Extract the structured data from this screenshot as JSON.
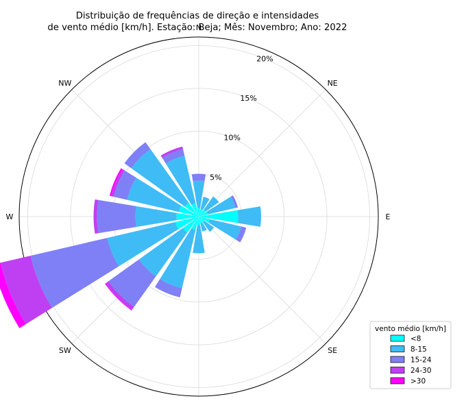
{
  "chart_data": {
    "type": "windrose",
    "title_line1": "Distribuição de frequências de direção e intensidades",
    "title_line2": "de vento médio [km/h]. Estação: Beja; Mês: Novembro; Ano: 2022",
    "directions": [
      "N",
      "NNE",
      "NE",
      "ENE",
      "E",
      "ESE",
      "SE",
      "SSE",
      "S",
      "SSW",
      "SW",
      "WSW",
      "W",
      "WNW",
      "NW",
      "NNW"
    ],
    "direction_angles_deg": [
      0,
      22.5,
      45,
      67.5,
      90,
      112.5,
      135,
      157.5,
      180,
      202.5,
      225,
      247.5,
      270,
      292.5,
      315,
      337.5
    ],
    "compass_labels": [
      "N",
      "NE",
      "E",
      "SE",
      "S",
      "SW",
      "W",
      "NW"
    ],
    "radial_ticks": [
      5,
      10,
      15,
      20
    ],
    "radial_tick_labels": [
      "5%",
      "10%",
      "15%",
      "20%"
    ],
    "rmax": 21,
    "legend": {
      "title": "vento médio [km/h]",
      "position": "lower-right",
      "entries": [
        "<8",
        "8-15",
        "15-24",
        "24-30",
        ">30"
      ]
    },
    "colors": [
      "#00ffff",
      "#3fbcf5",
      "#7f80f6",
      "#bf40f2",
      "#ff00ff"
    ],
    "series": [
      {
        "name": "<8",
        "values": [
          1.0,
          0.9,
          1.0,
          1.1,
          4.6,
          1.3,
          0.8,
          0.8,
          1.0,
          1.6,
          2.3,
          2.8,
          2.6,
          2.4,
          2.0,
          1.6
        ]
      },
      {
        "name": "8-15",
        "values": [
          3.2,
          1.5,
          1.9,
          3.3,
          2.7,
          3.8,
          1.4,
          1.0,
          3.3,
          7.0,
          6.3,
          8.2,
          4.8,
          6.2,
          7.7,
          5.7
        ]
      },
      {
        "name": "15-24",
        "values": [
          0.8,
          0.0,
          0.0,
          0.3,
          0.0,
          0.6,
          0.0,
          0.0,
          0.0,
          1.1,
          4.4,
          9.2,
          4.5,
          1.6,
          1.0,
          0.8
        ]
      },
      {
        "name": "24-30",
        "values": [
          0.0,
          0.0,
          0.0,
          0.0,
          0.0,
          0.0,
          0.0,
          0.0,
          0.0,
          0.0,
          0.4,
          3.6,
          0.4,
          0.3,
          0.0,
          0.3
        ]
      },
      {
        "name": ">30",
        "values": [
          0.0,
          0.0,
          0.0,
          0.0,
          0.0,
          0.0,
          0.0,
          0.0,
          0.0,
          0.0,
          0.1,
          0.9,
          0.0,
          0.2,
          0.0,
          0.0
        ]
      }
    ]
  }
}
